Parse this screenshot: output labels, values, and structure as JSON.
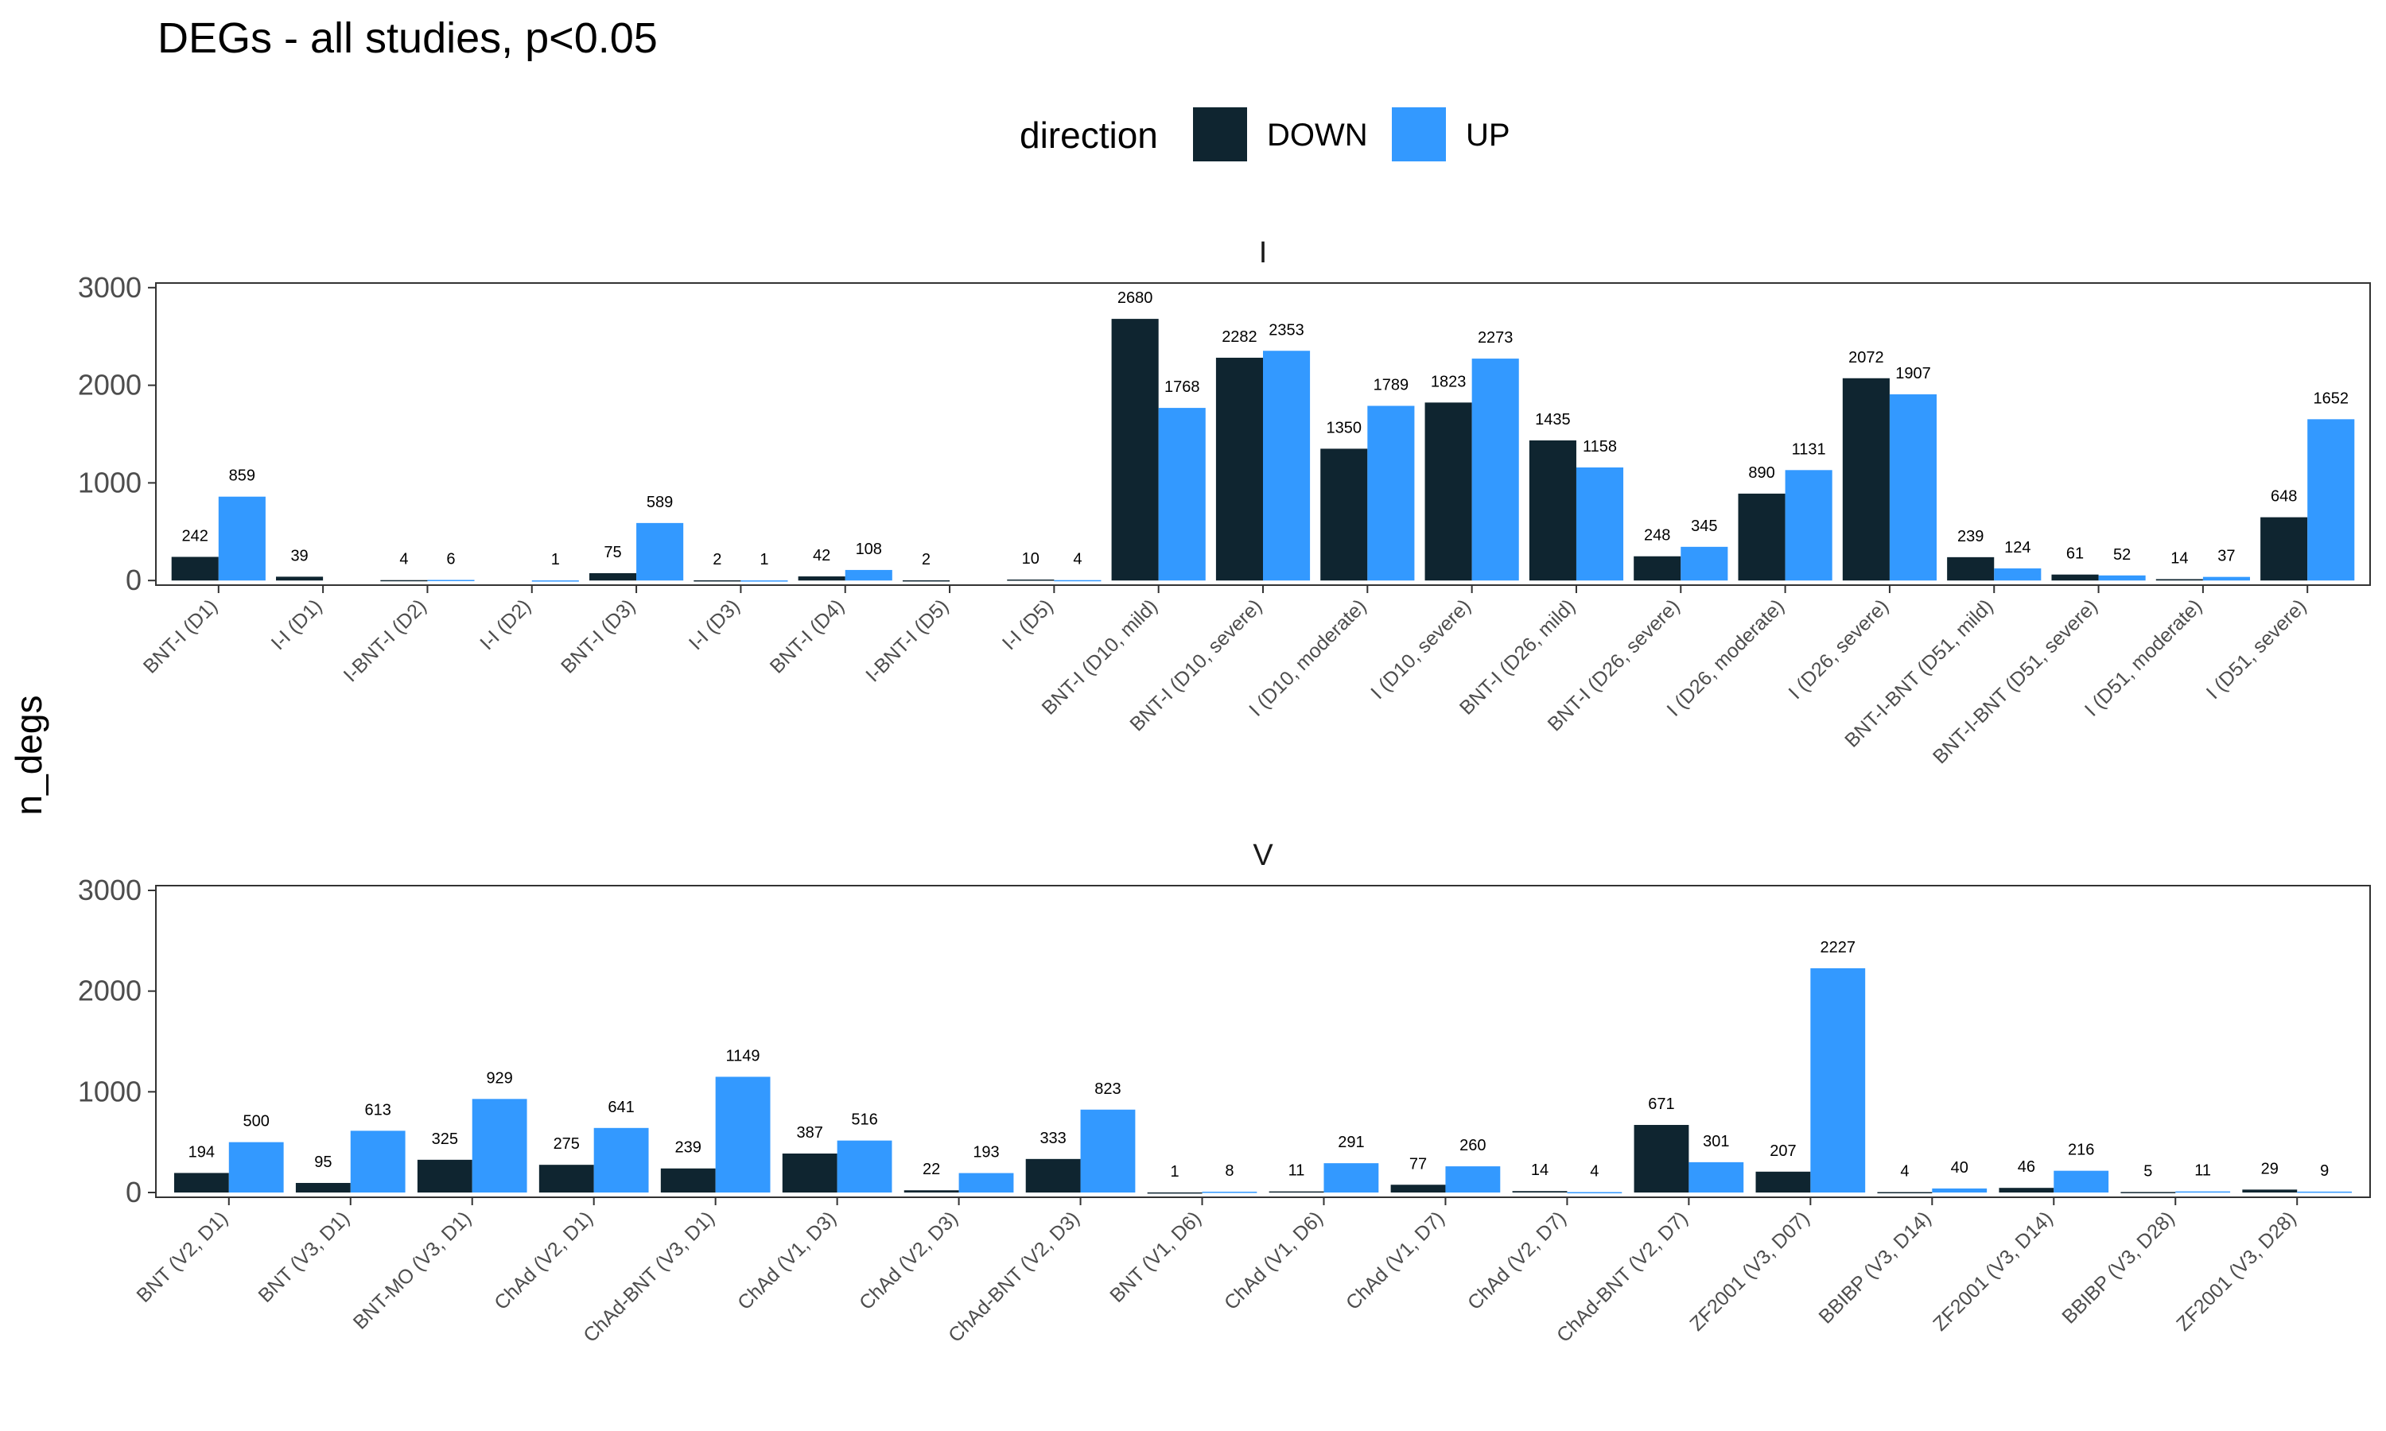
{
  "title": "DEGs - all studies, p<0.05",
  "legend": {
    "title": "direction",
    "items": [
      {
        "label": "DOWN",
        "color": "#0f2530"
      },
      {
        "label": "UP",
        "color": "#3399ff"
      }
    ]
  },
  "chart_data": {
    "type": "bar",
    "title": "DEGs - all studies, p<0.05",
    "ylabel": "n_degs",
    "xlabel": "",
    "ylim": [
      0,
      3000
    ],
    "yticks": [
      0,
      1000,
      2000,
      3000
    ],
    "grid": false,
    "legend_position": "top",
    "facets": [
      {
        "strip": "I",
        "categories": [
          "BNT-I (D1)",
          "I-I (D1)",
          "I-BNT-I (D2)",
          "I-I (D2)",
          "BNT-I (D3)",
          "I-I (D3)",
          "BNT-I (D4)",
          "I-BNT-I (D5)",
          "I-I (D5)",
          "BNT-I (D10, mild)",
          "BNT-I (D10, severe)",
          "I (D10, moderate)",
          "I (D10, severe)",
          "BNT-I (D26, mild)",
          "BNT-I (D26, severe)",
          "I (D26, moderate)",
          "I (D26, severe)",
          "BNT-I-BNT (D51, mild)",
          "BNT-I-BNT (D51, severe)",
          "I (D51, moderate)",
          "I (D51, severe)"
        ],
        "series": [
          {
            "name": "DOWN",
            "values": [
              242,
              39,
              4,
              null,
              75,
              2,
              42,
              2,
              10,
              2680,
              2282,
              1350,
              1823,
              1435,
              248,
              890,
              2072,
              239,
              61,
              14,
              648
            ]
          },
          {
            "name": "UP",
            "values": [
              859,
              null,
              6,
              1,
              589,
              1,
              108,
              null,
              4,
              1768,
              2353,
              1789,
              2273,
              1158,
              345,
              1131,
              1907,
              124,
              52,
              37,
              1652
            ]
          }
        ]
      },
      {
        "strip": "V",
        "categories": [
          "BNT (V2, D1)",
          "BNT (V3, D1)",
          "BNT-MO (V3, D1)",
          "ChAd (V2, D1)",
          "ChAd-BNT (V3, D1)",
          "ChAd (V1, D3)",
          "ChAd (V2, D3)",
          "ChAd-BNT (V2, D3)",
          "BNT (V1, D6)",
          "ChAd (V1, D6)",
          "ChAd (V1, D7)",
          "ChAd (V2, D7)",
          "ChAd-BNT (V2, D7)",
          "ZF2001 (V3, D07)",
          "BBIBP (V3, D14)",
          "ZF2001 (V3, D14)",
          "BBIBP (V3, D28)",
          "ZF2001 (V3, D28)"
        ],
        "series": [
          {
            "name": "DOWN",
            "values": [
              194,
              95,
              325,
              275,
              239,
              387,
              22,
              333,
              1,
              11,
              77,
              14,
              671,
              207,
              4,
              46,
              5,
              29
            ]
          },
          {
            "name": "UP",
            "values": [
              500,
              613,
              929,
              641,
              1149,
              516,
              193,
              823,
              8,
              291,
              260,
              4,
              301,
              2227,
              40,
              216,
              11,
              9
            ]
          }
        ]
      }
    ]
  }
}
